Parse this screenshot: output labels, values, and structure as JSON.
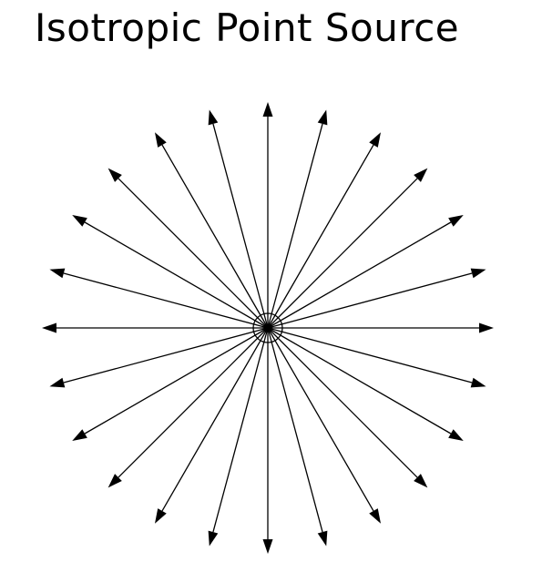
{
  "title": "Isotropic Point Source",
  "diagram": {
    "ray_count": 24,
    "line_color": "#000000",
    "background": "#ffffff"
  }
}
